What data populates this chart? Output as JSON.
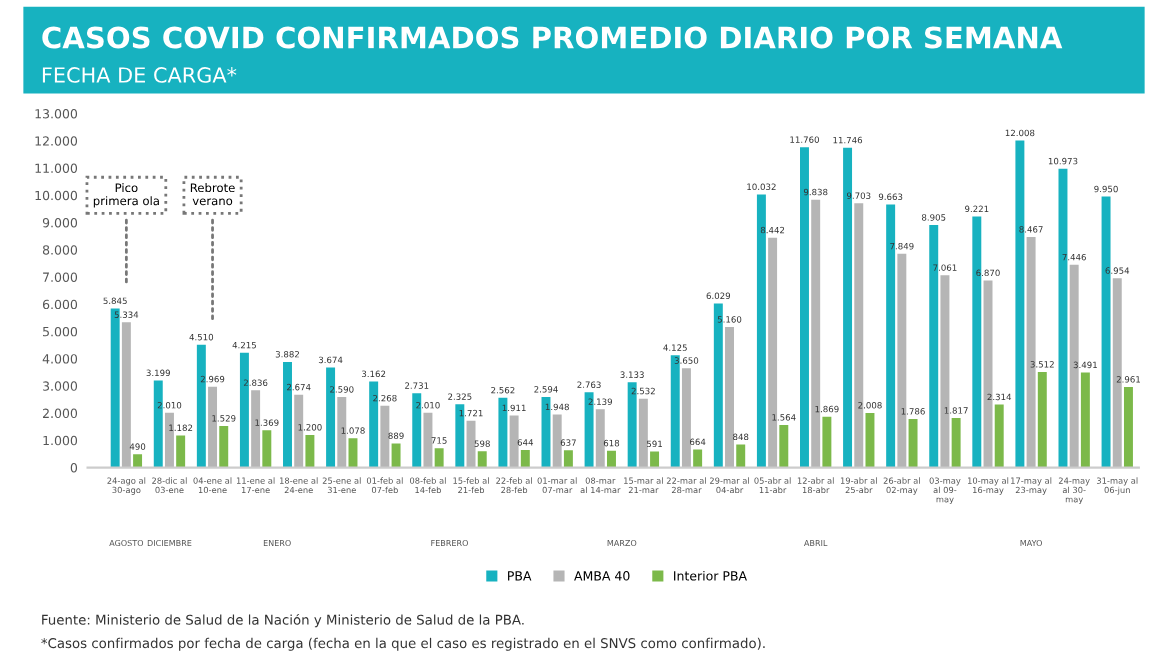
{
  "chart_data": {
    "type": "bar",
    "title": "CASOS COVID CONFIRMADOS PROMEDIO DIARIO POR SEMANA",
    "subtitle": "FECHA DE CARGA*",
    "categories": [
      "24-ago al\n30-ago",
      "28-dic al\n03-ene",
      "04-ene al\n10-ene",
      "11-ene al\n17-ene",
      "18-ene al\n24-ene",
      "25-ene al\n31-ene",
      "01-feb al\n07-feb",
      "08-feb al\n14-feb",
      "15-feb al\n21-feb",
      "22-feb al\n28-feb",
      "01-mar al\n07-mar",
      "08-mar\nal 14-mar",
      "15-mar al\n21-mar",
      "22-mar al\n28-mar",
      "29-mar al\n04-abr",
      "05-abr al\n11-abr",
      "12-abr al\n18-abr",
      "19-abr al\n25-abr",
      "26-abr al\n02-may",
      "03-may\nal 09-\nmay",
      "10-may al\n16-may",
      "17-may al\n23-may",
      "24-may\nal 30-\nmay",
      "31-may al\n06-jun"
    ],
    "series": [
      {
        "name": "PBA",
        "color": "#17b2c0",
        "values": [
          5845,
          3199,
          4510,
          4215,
          3882,
          3674,
          3162,
          2731,
          2325,
          2562,
          2594,
          2763,
          3133,
          4125,
          6029,
          10032,
          11760,
          11746,
          9663,
          8905,
          9221,
          12008,
          10973,
          9950
        ],
        "value_labels": [
          "5.845",
          "3.199",
          "4.510",
          "4.215",
          "3.882",
          "3.674",
          "3.162",
          "2.731",
          "2.325",
          "2.562",
          "2.594",
          "2.763",
          "3.133",
          "4.125",
          "6.029",
          "10.032",
          "11.760",
          "11.746",
          "9.663",
          "8.905",
          "9.221",
          "12.008",
          "10.973",
          "9.950"
        ]
      },
      {
        "name": "AMBA 40",
        "color": "#b5b5b5",
        "values": [
          5334,
          2010,
          2969,
          2836,
          2674,
          2590,
          2268,
          2010,
          1721,
          1911,
          1948,
          2139,
          2532,
          3650,
          5160,
          8442,
          9838,
          9703,
          7849,
          7061,
          6870,
          8467,
          7446,
          6954
        ],
        "value_labels": [
          "5.334",
          "2.010",
          "2.969",
          "2.836",
          "2.674",
          "2.590",
          "2.268",
          "2.010",
          "1.721",
          "1.911",
          "1.948",
          "2.139",
          "2.532",
          "3.650",
          "5.160",
          "8.442",
          "9.838",
          "9.703",
          "7.849",
          "7.061",
          "6.870",
          "8.467",
          "7.446",
          "6.954"
        ]
      },
      {
        "name": "Interior PBA",
        "color": "#7cb94a",
        "values": [
          490,
          1182,
          1529,
          1369,
          1200,
          1078,
          889,
          715,
          598,
          644,
          637,
          618,
          591,
          664,
          848,
          1564,
          1869,
          2008,
          1786,
          1817,
          2314,
          3512,
          3491,
          2961
        ],
        "value_labels": [
          "490",
          "1.182",
          "1.529",
          "1.369",
          "1.200",
          "1.078",
          "889",
          "715",
          "598",
          "644",
          "637",
          "618",
          "591",
          "664",
          "848",
          "1.564",
          "1.869",
          "2.008",
          "1.786",
          "1.817",
          "2.314",
          "3.512",
          "3.491",
          "2.961"
        ]
      }
    ],
    "ylim": [
      0,
      13000
    ],
    "yticks": [
      0,
      {
        "value": 1000,
        "label": "1.000"
      },
      {
        "value": 2000,
        "label": "2.000"
      },
      {
        "value": 3000,
        "label": "3.000"
      },
      {
        "value": 4000,
        "label": "4.000"
      },
      {
        "value": 5000,
        "label": "5.000"
      },
      {
        "value": 6000,
        "label": "6.000"
      },
      {
        "value": 7000,
        "label": "7.000"
      },
      {
        "value": 8000,
        "label": "8.000"
      },
      {
        "value": 9000,
        "label": "9.000"
      },
      {
        "value": 10000,
        "label": "10.000"
      },
      {
        "value": 11000,
        "label": "11.000"
      },
      {
        "value": 12000,
        "label": "12.000"
      },
      {
        "value": 13000,
        "label": "13.000"
      }
    ],
    "legend": "bottom",
    "annotations": [
      {
        "text": "Pico\nprimera ola",
        "x": "24-ago al\n30-ago",
        "y": 10000
      },
      {
        "text": "Rebrote\nverano",
        "x": "04-ene al\n10-ene",
        "y": 10000
      },
      "AGOSTO",
      "DICIEMBRE",
      "ENERO",
      "FEBRERO",
      "MARZO",
      "ABRIL",
      "MAYO",
      "Fuente: Ministerio de Salud de la Nación y Ministerio de Salud de la PBA.",
      "*Casos confirmados por fecha de carga (fecha en la que el caso es registrado en el SNVS como confirmado)."
    ]
  }
}
